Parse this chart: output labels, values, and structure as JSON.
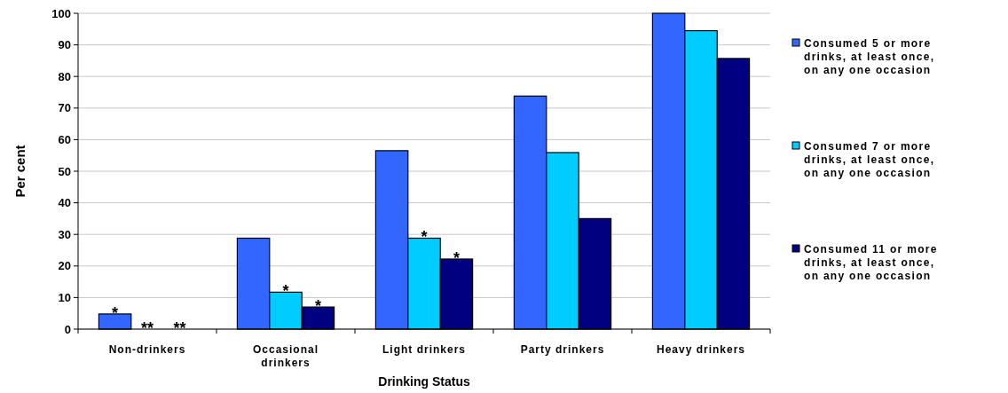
{
  "chart_data": {
    "type": "bar",
    "xlabel": "Drinking Status",
    "ylabel": "Per cent",
    "categories": [
      "Non-drinkers",
      "Occasional drinkers",
      "Light drinkers",
      "Party drinkers",
      "Heavy drinkers"
    ],
    "series": [
      {
        "name": "Consumed 5 or more drinks, at least once, on any one occasion",
        "color": "#3366ff",
        "values": [
          4.8,
          28.8,
          56.5,
          73.8,
          100
        ]
      },
      {
        "name": "Consumed 7 or more drinks, at least once, on any one occasion",
        "color": "#00ccff",
        "values": [
          null,
          11.7,
          28.8,
          55.9,
          94.5
        ]
      },
      {
        "name": "Consumed 11 or more drinks, at least once, on any one occasion",
        "color": "#000080",
        "values": [
          null,
          7,
          22.2,
          35,
          85.7
        ]
      }
    ],
    "ylim": [
      0,
      100
    ],
    "yticks": [
      0,
      10,
      20,
      30,
      40,
      50,
      60,
      70,
      80,
      90,
      100
    ],
    "grid": "y",
    "legend": "right",
    "annotations": [
      "*",
      "**",
      "**",
      {
        "text": "*",
        "x": "Occasional drinkers",
        "y": 11.7
      },
      "*",
      {
        "text": "*",
        "x": "Light drinkers",
        "y": 28.8
      },
      "*"
    ]
  }
}
